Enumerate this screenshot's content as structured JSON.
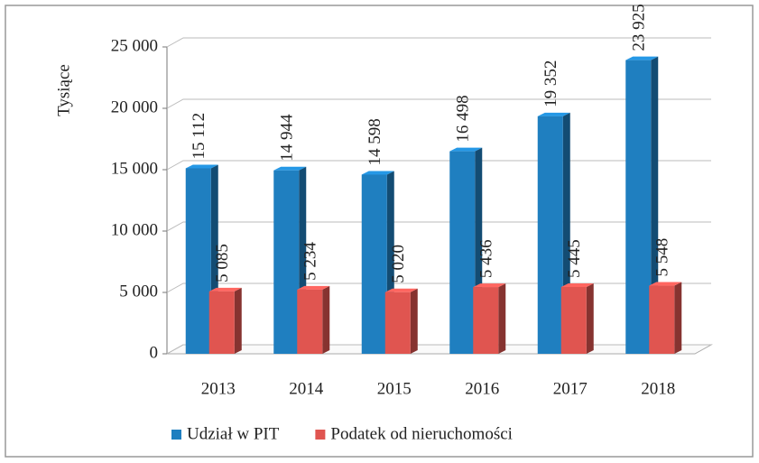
{
  "chart_data": {
    "type": "bar",
    "y_axis_label": "Tysiące",
    "categories": [
      "2013",
      "2014",
      "2015",
      "2016",
      "2017",
      "2018"
    ],
    "series": [
      {
        "name": "Udział w PIT",
        "color": "#1f7fc0",
        "values": [
          15112,
          14944,
          14598,
          16498,
          19352,
          23925
        ],
        "value_labels": [
          "15 112",
          "14 944",
          "14 598",
          "16 498",
          "19 352",
          "23 925"
        ]
      },
      {
        "name": "Podatek od nieruchomości",
        "color": "#e05550",
        "values": [
          5085,
          5234,
          5020,
          5436,
          5445,
          5548
        ],
        "value_labels": [
          "5 085",
          "5 234",
          "5 020",
          "5 436",
          "5 445",
          "5 548"
        ]
      }
    ],
    "ylim": [
      0,
      25000
    ],
    "yticks": [
      0,
      {
        "value": 5000,
        "label": "5 000"
      },
      {
        "value": 10000,
        "label": "10 000"
      },
      {
        "value": 15000,
        "label": "15 000"
      },
      {
        "value": 20000,
        "label": "20 000"
      },
      {
        "value": 25000,
        "label": "25 000"
      }
    ],
    "grid": true,
    "legend": "bottom"
  }
}
